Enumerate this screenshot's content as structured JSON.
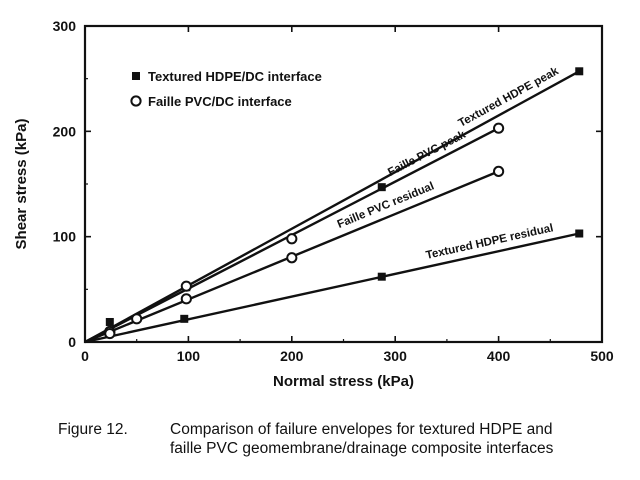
{
  "chart_data": {
    "type": "scatter",
    "xlabel": "Normal stress (kPa)",
    "ylabel": "Shear stress (kPa)",
    "xlim": [
      0,
      500
    ],
    "ylim": [
      0,
      300
    ],
    "xticks": [
      "0",
      "100",
      "200",
      "300",
      "400",
      "500"
    ],
    "yticks": [
      "0",
      "100",
      "200",
      "300"
    ],
    "xtick_values": [
      0,
      100,
      200,
      300,
      400,
      500
    ],
    "ytick_values": [
      0,
      100,
      200,
      300
    ],
    "grid": false,
    "legend_position": "top-left",
    "series": [
      {
        "name": "Textured HDPE/DC interface",
        "marker": "square",
        "points": [
          [
            24,
            19
          ],
          [
            98,
            52
          ],
          [
            287,
            147
          ],
          [
            478,
            257
          ]
        ]
      },
      {
        "name": "Textured HDPE/DC interface",
        "marker": "square",
        "points": [
          [
            24,
            9
          ],
          [
            96,
            22
          ],
          [
            287,
            62
          ],
          [
            478,
            103
          ]
        ]
      },
      {
        "name": "Faille PVC/DC interface",
        "marker": "circle",
        "points": [
          [
            24,
            10
          ],
          [
            50,
            22
          ],
          [
            98,
            53
          ],
          [
            200,
            98
          ],
          [
            400,
            203
          ]
        ]
      },
      {
        "name": "Faille PVC/DC interface",
        "marker": "circle",
        "points": [
          [
            24,
            8
          ],
          [
            98,
            41
          ],
          [
            200,
            80
          ],
          [
            400,
            162
          ]
        ]
      }
    ],
    "envelopes": [
      {
        "label": "Textured HDPE peak",
        "from": [
          0,
          0
        ],
        "to": [
          478,
          257
        ]
      },
      {
        "label": "Faille PVC peak",
        "from": [
          0,
          0
        ],
        "to": [
          400,
          203
        ]
      },
      {
        "label": "Faille PVC residual",
        "from": [
          0,
          0
        ],
        "to": [
          400,
          162
        ]
      },
      {
        "label": "Textured HDPE residual",
        "from": [
          0,
          0
        ],
        "to": [
          478,
          103
        ]
      }
    ],
    "legend": [
      "Textured HDPE/DC interface",
      "Faille PVC/DC interface"
    ]
  },
  "caption": {
    "figure_label": "Figure 12.",
    "line1": "Comparison of failure envelopes for textured HDPE and",
    "line2": "faille PVC geomembrane/drainage composite interfaces"
  }
}
